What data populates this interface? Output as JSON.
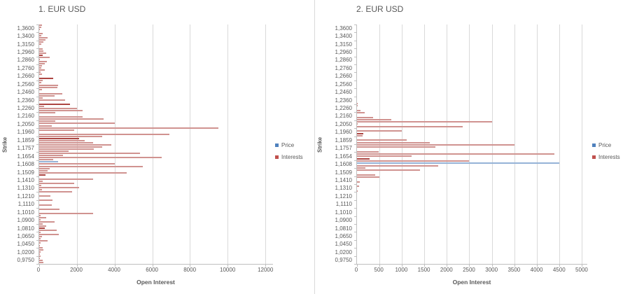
{
  "colors": {
    "interests_bar": "#d09390",
    "dark_bar": "#ad4542",
    "price_bar": "#95b3d7",
    "legend_price": "#4f81bd",
    "legend_interests": "#c0504d",
    "grid": "#d9d9d9",
    "axis": "#bfbfbf",
    "text": "#595959"
  },
  "chart_data": [
    {
      "type": "bar",
      "orientation": "horizontal",
      "title": "1. EUR USD",
      "xlabel": "Open Interest",
      "ylabel": "Strike",
      "xlim": [
        0,
        12400
      ],
      "x_max": 12400,
      "x_ticks": [
        0,
        2000,
        4000,
        6000,
        8000,
        10000,
        12000
      ],
      "grid": true,
      "legend_position": "right",
      "legend": [
        {
          "label": "Price",
          "color": "#4f81bd",
          "series": "p"
        },
        {
          "label": "Interests",
          "color": "#c0504d",
          "series": "i"
        }
      ],
      "strikes": [
        "1,3600",
        "1,3400",
        "1,3150",
        "1,2960",
        "1,2860",
        "1,2760",
        "1,2660",
        "1,2560",
        "1,2460",
        "1,2360",
        "1,2260",
        "1,2160",
        "1,2050",
        "1,1960",
        "1,1859",
        "1,1757",
        "1,1654",
        "1,1608",
        "1,1509",
        "1,1410",
        "1,1310",
        "1,1210",
        "1,1110",
        "1,1010",
        "1,0900",
        "1,0810",
        "1,0650",
        "1,0450",
        "1,0200",
        "0,9750"
      ],
      "bars": [
        [
          150,
          "i"
        ],
        [
          110,
          "i"
        ],
        [
          50,
          "i"
        ],
        [
          0,
          "i"
        ],
        [
          180,
          "i"
        ],
        [
          120,
          "i"
        ],
        [
          440,
          "i"
        ],
        [
          330,
          "i"
        ],
        [
          240,
          "i"
        ],
        [
          120,
          "i"
        ],
        [
          0,
          "i"
        ],
        [
          180,
          "i"
        ],
        [
          240,
          "i"
        ],
        [
          360,
          "i"
        ],
        [
          180,
          "d"
        ],
        [
          570,
          "i"
        ],
        [
          40,
          "i"
        ],
        [
          420,
          "i"
        ],
        [
          310,
          "i"
        ],
        [
          150,
          "i"
        ],
        [
          120,
          "i"
        ],
        [
          290,
          "i"
        ],
        [
          80,
          "i"
        ],
        [
          150,
          "i"
        ],
        [
          0,
          "i"
        ],
        [
          760,
          "d"
        ],
        [
          200,
          "i"
        ],
        [
          100,
          "i"
        ],
        [
          1000,
          "i"
        ],
        [
          950,
          "i"
        ],
        [
          150,
          "i"
        ],
        [
          0,
          "i"
        ],
        [
          1240,
          "i"
        ],
        [
          820,
          "i"
        ],
        [
          200,
          "i"
        ],
        [
          1380,
          "i"
        ],
        [
          0,
          "i"
        ],
        [
          1640,
          "d"
        ],
        [
          250,
          "i"
        ],
        [
          2000,
          "i"
        ],
        [
          2300,
          "i"
        ],
        [
          850,
          "i"
        ],
        [
          0,
          "i"
        ],
        [
          2300,
          "i"
        ],
        [
          3400,
          "i"
        ],
        [
          850,
          "i"
        ],
        [
          4000,
          "i"
        ],
        [
          670,
          "i"
        ],
        [
          9500,
          "i"
        ],
        [
          1850,
          "i"
        ],
        [
          0,
          "i"
        ],
        [
          6900,
          "i"
        ],
        [
          3330,
          "i"
        ],
        [
          2120,
          "d"
        ],
        [
          2420,
          "i"
        ],
        [
          2870,
          "i"
        ],
        [
          3820,
          "i"
        ],
        [
          3330,
          "i"
        ],
        [
          2900,
          "i"
        ],
        [
          1550,
          "i"
        ],
        [
          5330,
          "i"
        ],
        [
          1270,
          "i"
        ],
        [
          6500,
          "i"
        ],
        [
          730,
          "i"
        ],
        [
          1000,
          "p"
        ],
        [
          4000,
          "i"
        ],
        [
          5500,
          "i"
        ],
        [
          550,
          "i"
        ],
        [
          450,
          "i"
        ],
        [
          4650,
          "i"
        ],
        [
          330,
          "d"
        ],
        [
          0,
          "i"
        ],
        [
          2850,
          "i"
        ],
        [
          200,
          "i"
        ],
        [
          1840,
          "i"
        ],
        [
          100,
          "i"
        ],
        [
          2100,
          "i"
        ],
        [
          130,
          "i"
        ],
        [
          1750,
          "i"
        ],
        [
          0,
          "i"
        ],
        [
          580,
          "i"
        ],
        [
          0,
          "i"
        ],
        [
          690,
          "i"
        ],
        [
          0,
          "i"
        ],
        [
          680,
          "i"
        ],
        [
          0,
          "i"
        ],
        [
          1090,
          "i"
        ],
        [
          0,
          "i"
        ],
        [
          2850,
          "i"
        ],
        [
          60,
          "i"
        ],
        [
          380,
          "i"
        ],
        [
          60,
          "i"
        ],
        [
          810,
          "i"
        ],
        [
          180,
          "i"
        ],
        [
          360,
          "i"
        ],
        [
          300,
          "d"
        ],
        [
          910,
          "i"
        ],
        [
          70,
          "i"
        ],
        [
          1030,
          "i"
        ],
        [
          160,
          "i"
        ],
        [
          60,
          "i"
        ],
        [
          450,
          "i"
        ],
        [
          80,
          "i"
        ],
        [
          40,
          "i"
        ],
        [
          180,
          "i"
        ],
        [
          240,
          "i"
        ],
        [
          80,
          "i"
        ],
        [
          50,
          "i"
        ],
        [
          60,
          "i"
        ],
        [
          50,
          "i"
        ],
        [
          200,
          "i"
        ],
        [
          240,
          "i"
        ]
      ]
    },
    {
      "type": "bar",
      "orientation": "horizontal",
      "title": "2. EUR USD",
      "xlabel": "Open Interest",
      "ylabel": "Strike",
      "xlim": [
        0,
        5125
      ],
      "x_max": 5125,
      "x_ticks": [
        0,
        500,
        1000,
        1500,
        2000,
        2500,
        3000,
        3500,
        4000,
        4500,
        5000
      ],
      "grid": true,
      "legend_position": "right",
      "legend": [
        {
          "label": "Price",
          "color": "#4f81bd",
          "series": "p"
        },
        {
          "label": "Interests",
          "color": "#c0504d",
          "series": "i"
        }
      ],
      "strikes": [
        "1,3600",
        "1,3400",
        "1,3150",
        "1,2960",
        "1,2860",
        "1,2760",
        "1,2660",
        "1,2560",
        "1,2460",
        "1,2360",
        "1,2260",
        "1,2160",
        "1,2050",
        "1,1960",
        "1,1859",
        "1,1757",
        "1,1654",
        "1,1608",
        "1,1509",
        "1,1410",
        "1,1310",
        "1,1210",
        "1,1110",
        "1,1010",
        "1,0900",
        "1,0810",
        "1,0650",
        "1,0450",
        "1,0200",
        "0,9750"
      ],
      "bars": [
        [
          0,
          "i"
        ],
        [
          0,
          "i"
        ],
        [
          0,
          "i"
        ],
        [
          0,
          "i"
        ],
        [
          0,
          "i"
        ],
        [
          0,
          "i"
        ],
        [
          0,
          "i"
        ],
        [
          0,
          "i"
        ],
        [
          0,
          "i"
        ],
        [
          0,
          "i"
        ],
        [
          0,
          "i"
        ],
        [
          0,
          "i"
        ],
        [
          0,
          "i"
        ],
        [
          0,
          "i"
        ],
        [
          0,
          "i"
        ],
        [
          0,
          "i"
        ],
        [
          0,
          "i"
        ],
        [
          0,
          "i"
        ],
        [
          0,
          "i"
        ],
        [
          0,
          "i"
        ],
        [
          0,
          "i"
        ],
        [
          0,
          "i"
        ],
        [
          0,
          "i"
        ],
        [
          0,
          "i"
        ],
        [
          0,
          "i"
        ],
        [
          0,
          "i"
        ],
        [
          0,
          "i"
        ],
        [
          0,
          "i"
        ],
        [
          0,
          "i"
        ],
        [
          0,
          "i"
        ],
        [
          0,
          "i"
        ],
        [
          0,
          "i"
        ],
        [
          0,
          "i"
        ],
        [
          0,
          "i"
        ],
        [
          20,
          "i"
        ],
        [
          20,
          "i"
        ],
        [
          0,
          "i"
        ],
        [
          80,
          "i"
        ],
        [
          175,
          "i"
        ],
        [
          0,
          "i"
        ],
        [
          360,
          "i"
        ],
        [
          765,
          "i"
        ],
        [
          3000,
          "i"
        ],
        [
          20,
          "i"
        ],
        [
          2350,
          "i"
        ],
        [
          0,
          "i"
        ],
        [
          1000,
          "i"
        ],
        [
          140,
          "d"
        ],
        [
          125,
          "i"
        ],
        [
          0,
          "i"
        ],
        [
          1100,
          "i"
        ],
        [
          1625,
          "i"
        ],
        [
          3500,
          "i"
        ],
        [
          1750,
          "i"
        ],
        [
          0,
          "i"
        ],
        [
          490,
          "i"
        ],
        [
          4400,
          "i"
        ],
        [
          1210,
          "i"
        ],
        [
          280,
          "d"
        ],
        [
          2500,
          "i"
        ],
        [
          4500,
          "p"
        ],
        [
          1800,
          "i"
        ],
        [
          190,
          "i"
        ],
        [
          1400,
          "i"
        ],
        [
          0,
          "i"
        ],
        [
          410,
          "i"
        ],
        [
          500,
          "i"
        ],
        [
          0,
          "i"
        ],
        [
          60,
          "i"
        ],
        [
          0,
          "i"
        ],
        [
          50,
          "i"
        ],
        [
          0,
          "i"
        ],
        [
          20,
          "i"
        ],
        [
          0,
          "i"
        ],
        [
          0,
          "i"
        ],
        [
          0,
          "i"
        ],
        [
          0,
          "i"
        ],
        [
          0,
          "i"
        ],
        [
          0,
          "i"
        ],
        [
          0,
          "i"
        ],
        [
          0,
          "i"
        ],
        [
          0,
          "i"
        ],
        [
          0,
          "i"
        ],
        [
          0,
          "i"
        ],
        [
          0,
          "i"
        ],
        [
          0,
          "i"
        ],
        [
          0,
          "i"
        ],
        [
          0,
          "i"
        ],
        [
          0,
          "i"
        ],
        [
          0,
          "i"
        ],
        [
          0,
          "i"
        ],
        [
          0,
          "i"
        ],
        [
          0,
          "i"
        ],
        [
          0,
          "i"
        ],
        [
          0,
          "i"
        ],
        [
          0,
          "i"
        ],
        [
          0,
          "i"
        ],
        [
          0,
          "i"
        ],
        [
          0,
          "i"
        ],
        [
          0,
          "i"
        ],
        [
          0,
          "i"
        ],
        [
          0,
          "i"
        ],
        [
          0,
          "i"
        ],
        [
          0,
          "i"
        ]
      ]
    }
  ]
}
